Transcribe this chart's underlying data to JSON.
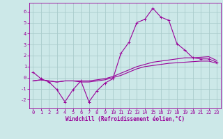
{
  "xlabel": "Windchill (Refroidissement éolien,°C)",
  "background_color": "#cce8e8",
  "grid_color": "#aacccc",
  "line_color": "#990099",
  "x_hours": [
    0,
    1,
    2,
    3,
    4,
    5,
    6,
    7,
    8,
    9,
    10,
    11,
    12,
    13,
    14,
    15,
    16,
    17,
    18,
    19,
    20,
    21,
    22,
    23
  ],
  "line1": [
    0.5,
    -0.1,
    -0.4,
    -1.1,
    -2.2,
    -1.1,
    -0.3,
    -2.2,
    -1.2,
    -0.5,
    -0.1,
    2.2,
    3.2,
    5.0,
    5.3,
    6.3,
    5.5,
    5.2,
    3.1,
    2.5,
    1.8,
    1.7,
    1.7,
    1.4
  ],
  "line2": [
    -0.3,
    -0.2,
    -0.3,
    -0.4,
    -0.3,
    -0.3,
    -0.3,
    -0.3,
    -0.2,
    -0.1,
    0.1,
    0.4,
    0.7,
    1.0,
    1.2,
    1.4,
    1.5,
    1.6,
    1.7,
    1.8,
    1.8,
    1.85,
    1.9,
    1.55
  ],
  "line3": [
    -0.3,
    -0.2,
    -0.3,
    -0.4,
    -0.3,
    -0.3,
    -0.4,
    -0.4,
    -0.3,
    -0.2,
    0.0,
    0.2,
    0.5,
    0.8,
    1.0,
    1.1,
    1.2,
    1.3,
    1.35,
    1.4,
    1.45,
    1.5,
    1.5,
    1.3
  ],
  "ylim": [
    -2.8,
    6.8
  ],
  "xlim": [
    -0.5,
    23.5
  ],
  "yticks": [
    -2,
    -1,
    0,
    1,
    2,
    3,
    4,
    5,
    6
  ],
  "xticks": [
    0,
    1,
    2,
    3,
    4,
    5,
    6,
    7,
    8,
    9,
    10,
    11,
    12,
    13,
    14,
    15,
    16,
    17,
    18,
    19,
    20,
    21,
    22,
    23
  ],
  "tick_fontsize": 5,
  "xlabel_fontsize": 5.5
}
